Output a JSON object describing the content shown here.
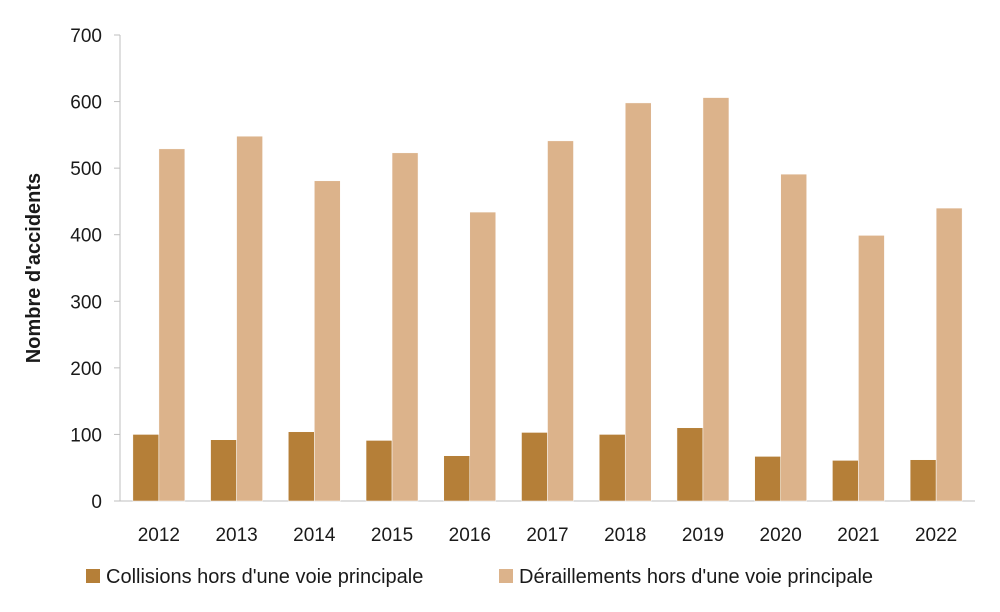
{
  "chart_data": {
    "type": "bar",
    "title": "",
    "xlabel": "",
    "ylabel": "Nombre d'accidents",
    "ylim": [
      0,
      700
    ],
    "yticks": [
      0,
      100,
      200,
      300,
      400,
      500,
      600,
      700
    ],
    "grid": false,
    "legend_position": "bottom",
    "categories": [
      "2012",
      "2013",
      "2014",
      "2015",
      "2016",
      "2017",
      "2018",
      "2019",
      "2020",
      "2021",
      "2022"
    ],
    "series": [
      {
        "name": "Collisions hors d'une voie principale",
        "color": "#b57f38",
        "values": [
          100,
          92,
          104,
          91,
          68,
          103,
          100,
          110,
          67,
          61,
          62
        ]
      },
      {
        "name": "Déraillements hors d'une voie principale",
        "color": "#dcb38b",
        "values": [
          529,
          548,
          481,
          523,
          434,
          541,
          598,
          606,
          491,
          399,
          440
        ]
      }
    ]
  }
}
